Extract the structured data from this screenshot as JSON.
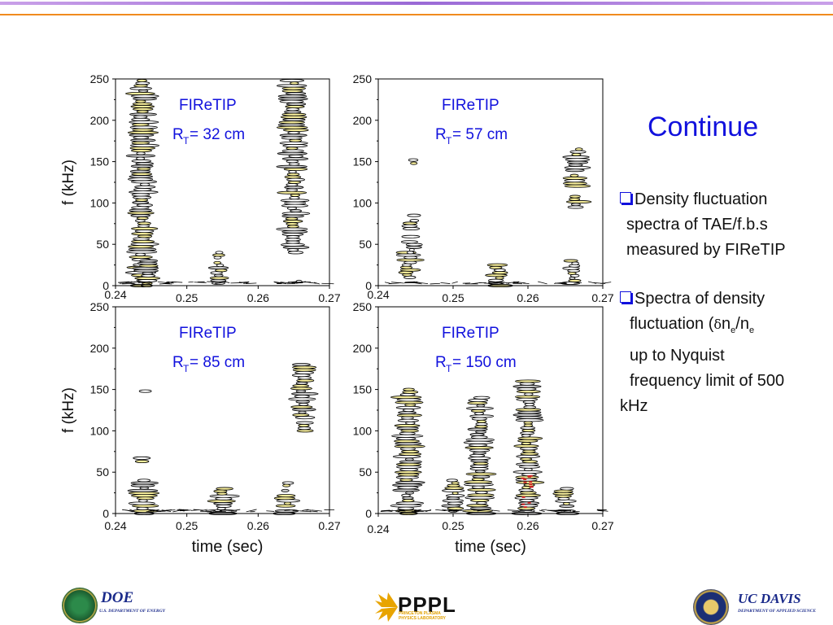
{
  "slide": {
    "title": "Continue",
    "bullets": [
      {
        "lines": [
          "Density fluctuation",
          "spectra of TAE/f.b.s",
          "measured by FIReTIP"
        ]
      },
      {
        "lines": [
          "Spectra of density",
          "fluctuation (",
          "up to Nyquist",
          "frequency limit of 500",
          "kHz"
        ]
      }
    ],
    "symbols": {
      "delta": "δ",
      "n": "n",
      "sub_e": "e",
      "slash": "/"
    },
    "logos": {
      "doe": "DOE",
      "doe_sub": "U.S. DEPARTMENT OF ENERGY",
      "pppl": "PPPL",
      "pppl_sub": "PRINCETON PLASMA PHYSICS LABORATORY",
      "ucdavis": "UC DAVIS",
      "ucdavis_sub": "DEPARTMENT OF APPLIED SCIENCE"
    },
    "colors": {
      "title": "#1111dd",
      "accent_bar": "#9a6ad6",
      "rule": "#f08a1e",
      "spectra_low": "#f5ec9a",
      "spectra_mid": "#c8c8c8",
      "spectra_high": "#cc2222",
      "contour": "#000000"
    }
  },
  "chart_data": [
    {
      "type": "heatmap",
      "label_line1": "FIReTIP",
      "label_prefix": "R",
      "label_sub": "T",
      "label_value": "= 32 cm",
      "ylabel": "f (kHz)",
      "xlabel": "",
      "xlim": [
        0.24,
        0.27
      ],
      "ylim": [
        0,
        250
      ],
      "x_ticks": [
        "0.24",
        "0.25",
        "0.26",
        "0.27"
      ],
      "y_ticks": [
        "0",
        "50",
        "100",
        "150",
        "200",
        "250"
      ],
      "features": [
        {
          "t": 0.2438,
          "f_min": 0,
          "f_max": 248,
          "intensity": 1.0
        },
        {
          "t": 0.2445,
          "f_min": 0,
          "f_max": 30,
          "intensity": 1.0
        },
        {
          "t": 0.2475,
          "f_min": 30,
          "f_max": 34,
          "intensity": 0.5
        },
        {
          "t": 0.2545,
          "f_min": 0,
          "f_max": 40,
          "intensity": 0.8
        },
        {
          "t": 0.265,
          "f_min": 40,
          "f_max": 248,
          "intensity": 1.0
        },
        {
          "t": 0.266,
          "f_min": 0,
          "f_max": 5,
          "intensity": 0.4
        }
      ]
    },
    {
      "type": "heatmap",
      "label_line1": "FIReTIP",
      "label_prefix": "R",
      "label_sub": "T",
      "label_value": "= 57 cm",
      "ylabel": "",
      "xlabel": "",
      "xlim": [
        0.24,
        0.27
      ],
      "ylim": [
        0,
        250
      ],
      "x_ticks": [
        "0.24",
        "0.25",
        "0.26",
        "0.27"
      ],
      "y_ticks": [
        "0",
        "50",
        "100",
        "150",
        "200",
        "250"
      ],
      "features": [
        {
          "t": 0.244,
          "f_min": 10,
          "f_max": 40,
          "intensity": 1.0
        },
        {
          "t": 0.2445,
          "f_min": 148,
          "f_max": 152,
          "intensity": 0.6
        },
        {
          "t": 0.2445,
          "f_min": 40,
          "f_max": 85,
          "intensity": 0.4
        },
        {
          "t": 0.256,
          "f_min": 0,
          "f_max": 25,
          "intensity": 1.0
        },
        {
          "t": 0.2665,
          "f_min": 95,
          "f_max": 165,
          "intensity": 0.8
        },
        {
          "t": 0.266,
          "f_min": 0,
          "f_max": 30,
          "intensity": 0.4
        }
      ]
    },
    {
      "type": "heatmap",
      "label_line1": "FIReTIP",
      "label_prefix": "R",
      "label_sub": "T",
      "label_value": "= 85 cm",
      "ylabel": "f (kHz)",
      "xlabel": "time (sec)",
      "xlim": [
        0.24,
        0.27
      ],
      "ylim": [
        0,
        250
      ],
      "x_ticks": [
        "0.24",
        "0.25",
        "0.26",
        "0.27"
      ],
      "y_ticks": [
        "0",
        "50",
        "100",
        "150",
        "200",
        "250"
      ],
      "features": [
        {
          "t": 0.244,
          "f_min": 0,
          "f_max": 40,
          "intensity": 1.0
        },
        {
          "t": 0.244,
          "f_min": 148,
          "f_max": 152,
          "intensity": 0.6
        },
        {
          "t": 0.244,
          "f_min": 63,
          "f_max": 67,
          "intensity": 0.4
        },
        {
          "t": 0.255,
          "f_min": 0,
          "f_max": 30,
          "intensity": 1.0
        },
        {
          "t": 0.264,
          "f_min": 0,
          "f_max": 40,
          "intensity": 0.6
        },
        {
          "t": 0.2663,
          "f_min": 100,
          "f_max": 180,
          "intensity": 0.8
        }
      ]
    },
    {
      "type": "heatmap",
      "label_line1": "FIReTIP",
      "label_prefix": "R",
      "label_sub": "T",
      "label_value": "= 150 cm",
      "ylabel": "",
      "xlabel": "time (sec)",
      "xlim": [
        0.24,
        0.27
      ],
      "ylim": [
        0,
        250
      ],
      "x_ticks": [
        "0.24",
        "0.25",
        "0.26",
        "0.27"
      ],
      "y_ticks": [
        "0",
        "50",
        "100",
        "150",
        "200",
        "250"
      ],
      "features": [
        {
          "t": 0.244,
          "f_min": 0,
          "f_max": 150,
          "intensity": 1.0
        },
        {
          "t": 0.25,
          "f_min": 0,
          "f_max": 40,
          "intensity": 0.6
        },
        {
          "t": 0.2535,
          "f_min": 0,
          "f_max": 140,
          "intensity": 1.0
        },
        {
          "t": 0.26,
          "f_min": 0,
          "f_max": 160,
          "intensity": 1.0
        },
        {
          "t": 0.265,
          "f_min": 0,
          "f_max": 30,
          "intensity": 0.6
        }
      ]
    }
  ]
}
